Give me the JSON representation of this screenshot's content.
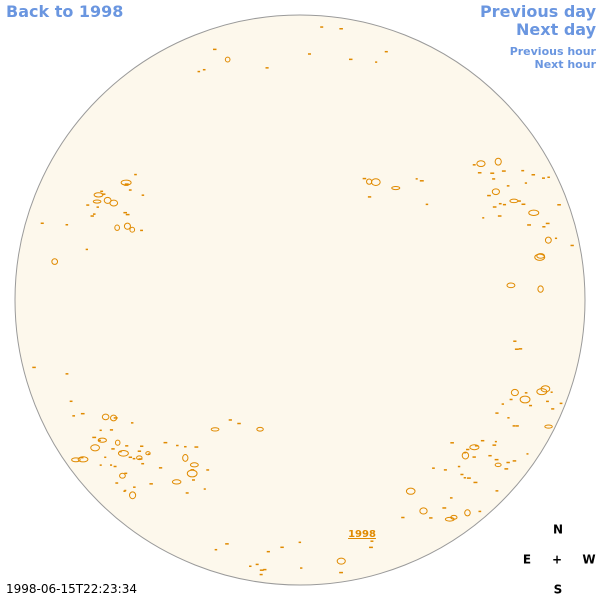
{
  "navigation": {
    "back_to_year": "Back to 1998",
    "previous_day": "Previous day",
    "next_day": "Next day",
    "previous_hour": "Previous hour",
    "next_hour": "Next hour"
  },
  "disk": {
    "year_link": "1998"
  },
  "compass": {
    "north": "N",
    "east": "E",
    "center": "+",
    "west": "W",
    "south": "S"
  },
  "timestamp": "1998-06-15T22:23:34"
}
